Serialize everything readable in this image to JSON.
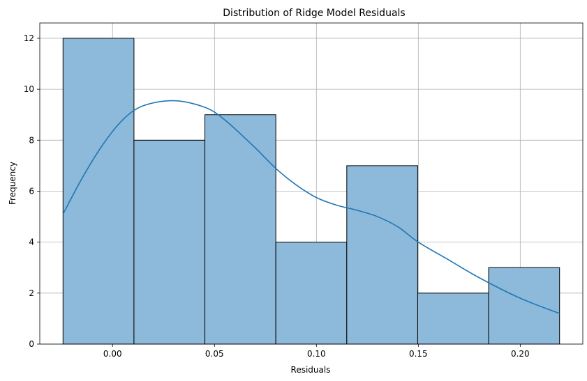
{
  "chart_data": {
    "type": "bar",
    "title": "Distribution of Ridge Model Residuals",
    "xlabel": "Residuals",
    "ylabel": "Frequency",
    "bins": [
      {
        "x0": -0.0243,
        "x1": 0.0105,
        "value": 12
      },
      {
        "x0": 0.0105,
        "x1": 0.0453,
        "value": 8
      },
      {
        "x0": 0.0453,
        "x1": 0.0801,
        "value": 9
      },
      {
        "x0": 0.0801,
        "x1": 0.1149,
        "value": 4
      },
      {
        "x0": 0.1149,
        "x1": 0.1497,
        "value": 7
      },
      {
        "x0": 0.1497,
        "x1": 0.1845,
        "value": 2
      },
      {
        "x0": 0.1845,
        "x1": 0.2193,
        "value": 3
      }
    ],
    "kde": {
      "x": [
        -0.0243,
        -0.015,
        -0.005,
        0.005,
        0.015,
        0.03,
        0.045,
        0.055,
        0.07,
        0.08,
        0.09,
        0.1,
        0.11,
        0.12,
        0.13,
        0.14,
        0.15,
        0.165,
        0.18,
        0.2,
        0.2193
      ],
      "y": [
        5.1,
        6.5,
        7.8,
        8.8,
        9.35,
        9.55,
        9.3,
        8.8,
        7.7,
        6.9,
        6.25,
        5.75,
        5.45,
        5.25,
        5.0,
        4.6,
        4.0,
        3.3,
        2.6,
        1.8,
        1.2
      ]
    },
    "xlim": [
      -0.0357,
      0.2307
    ],
    "ylim": [
      0,
      12.6
    ],
    "xticks": [
      0.0,
      0.05,
      0.1,
      0.15,
      0.2
    ],
    "xtick_labels": [
      "0.00",
      "0.05",
      "0.10",
      "0.15",
      "0.20"
    ],
    "yticks": [
      0,
      2,
      4,
      6,
      8,
      10,
      12
    ],
    "ytick_labels": [
      "0",
      "2",
      "4",
      "6",
      "8",
      "10",
      "12"
    ],
    "grid": true,
    "colors": {
      "bar_fill": "#8db9da",
      "bar_edge": "#000000",
      "kde_line": "#1f77b4",
      "grid": "#b0b0b0"
    }
  }
}
